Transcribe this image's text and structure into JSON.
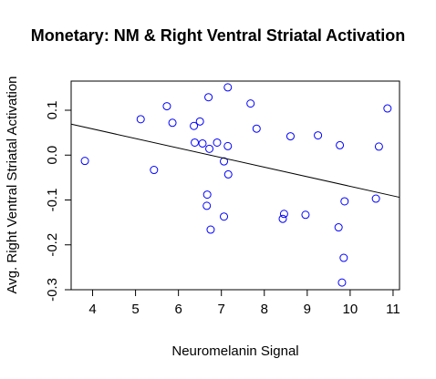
{
  "chart_data": {
    "type": "scatter",
    "title": "Monetary: NM & Right Ventral Striatal Activation",
    "xlabel": "Neuromelanin Signal",
    "ylabel": "Avg. Right Ventral Striatal Activation",
    "xlim": [
      3.5,
      11.15
    ],
    "ylim": [
      -0.3,
      0.165
    ],
    "x_ticks": [
      4,
      5,
      6,
      7,
      8,
      9,
      10,
      11
    ],
    "x_tick_labels": [
      "4",
      "5",
      "6",
      "7",
      "8",
      "9",
      "10",
      "11"
    ],
    "y_ticks": [
      -0.3,
      -0.2,
      -0.1,
      0.0,
      0.1
    ],
    "y_tick_labels": [
      "-0.3",
      "-0.2",
      "-0.1",
      "0.0",
      "0.1"
    ],
    "grid": false,
    "point_color": "#0000ff",
    "line_color": "#000000",
    "regression_line": {
      "x": [
        3.5,
        11.15
      ],
      "y": [
        0.069,
        -0.094
      ]
    },
    "points": [
      {
        "x": 3.82,
        "y": -0.013
      },
      {
        "x": 5.12,
        "y": 0.08
      },
      {
        "x": 5.43,
        "y": -0.033
      },
      {
        "x": 5.73,
        "y": 0.109
      },
      {
        "x": 5.86,
        "y": 0.072
      },
      {
        "x": 6.36,
        "y": 0.065
      },
      {
        "x": 6.38,
        "y": 0.028
      },
      {
        "x": 6.5,
        "y": 0.075
      },
      {
        "x": 6.56,
        "y": 0.026
      },
      {
        "x": 6.66,
        "y": -0.113
      },
      {
        "x": 6.67,
        "y": -0.088
      },
      {
        "x": 6.7,
        "y": 0.129
      },
      {
        "x": 6.72,
        "y": 0.014
      },
      {
        "x": 6.75,
        "y": -0.166
      },
      {
        "x": 6.9,
        "y": 0.028
      },
      {
        "x": 7.06,
        "y": -0.137
      },
      {
        "x": 7.06,
        "y": -0.014
      },
      {
        "x": 7.15,
        "y": 0.151
      },
      {
        "x": 7.15,
        "y": 0.02
      },
      {
        "x": 7.16,
        "y": -0.043
      },
      {
        "x": 7.68,
        "y": 0.115
      },
      {
        "x": 7.82,
        "y": 0.059
      },
      {
        "x": 8.43,
        "y": -0.142
      },
      {
        "x": 8.46,
        "y": -0.131
      },
      {
        "x": 8.61,
        "y": 0.042
      },
      {
        "x": 8.96,
        "y": -0.133
      },
      {
        "x": 9.25,
        "y": 0.044
      },
      {
        "x": 9.73,
        "y": -0.161
      },
      {
        "x": 9.76,
        "y": 0.022
      },
      {
        "x": 9.81,
        "y": -0.284
      },
      {
        "x": 9.85,
        "y": -0.229
      },
      {
        "x": 9.87,
        "y": -0.103
      },
      {
        "x": 10.6,
        "y": -0.097
      },
      {
        "x": 10.67,
        "y": 0.019
      },
      {
        "x": 10.87,
        "y": 0.104
      }
    ]
  }
}
